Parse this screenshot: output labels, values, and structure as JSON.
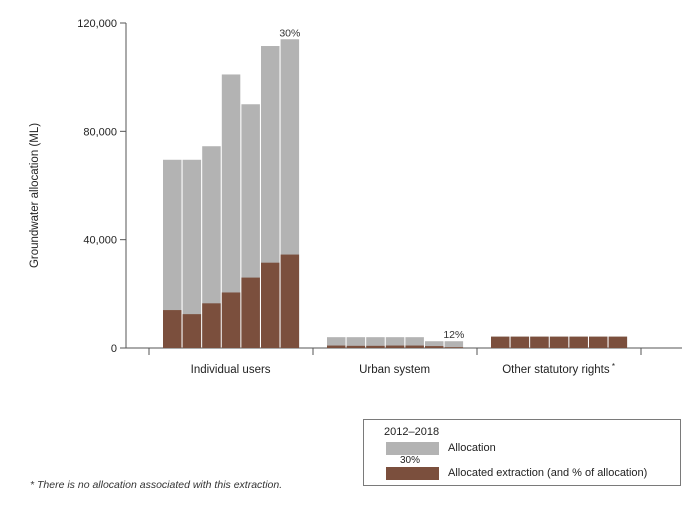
{
  "chart_data": {
    "type": "bar",
    "stacked_overlay": true,
    "ylabel": "Groundwater allocation (ML)",
    "ylim": [
      0,
      120000
    ],
    "yticks": [
      0,
      40000,
      80000,
      120000
    ],
    "ytick_labels": [
      "0",
      "40,000",
      "80,000",
      "120,000"
    ],
    "categories": [
      "Individual users",
      "Urban system",
      "Other statutory rights"
    ],
    "category_markers": [
      "",
      "",
      "*"
    ],
    "years": "2012–2018",
    "series": [
      {
        "name": "Allocation",
        "color": "#b3b3b3",
        "values": [
          [
            69500,
            69500,
            74500,
            101000,
            90000,
            111500,
            114000
          ],
          [
            4000,
            4000,
            4000,
            4000,
            4000,
            2500,
            2500
          ],
          [
            4200,
            4200,
            4200,
            4200,
            4200,
            4200,
            4200
          ]
        ]
      },
      {
        "name": "Allocated extraction (and % of allocation)",
        "color": "#7b4f3d",
        "values": [
          [
            14000,
            12500,
            16500,
            20500,
            26000,
            31500,
            34500
          ],
          [
            900,
            800,
            800,
            900,
            900,
            700,
            300
          ],
          [
            4200,
            4200,
            4200,
            4200,
            4200,
            4200,
            4200
          ]
        ]
      }
    ],
    "data_labels": [
      {
        "category": 0,
        "bar": 6,
        "text": "30%"
      },
      {
        "category": 1,
        "bar": 6,
        "text": "12%"
      }
    ],
    "grid": false,
    "legend": {
      "position": "bottom-right",
      "title": "2012–2018",
      "sample_percent": "30%"
    }
  },
  "footnote": "* There is no allocation associated with this extraction."
}
